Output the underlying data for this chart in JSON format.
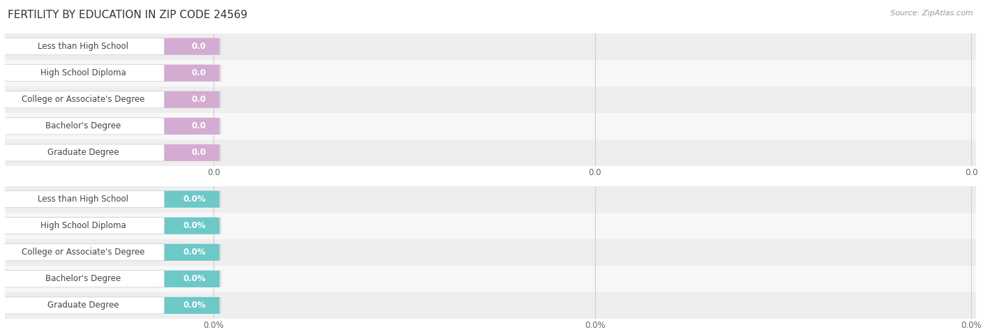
{
  "title": "FERTILITY BY EDUCATION IN ZIP CODE 24569",
  "source": "Source: ZipAtlas.com",
  "categories": [
    "Less than High School",
    "High School Diploma",
    "College or Associate's Degree",
    "Bachelor's Degree",
    "Graduate Degree"
  ],
  "values_top": [
    0.0,
    0.0,
    0.0,
    0.0,
    0.0
  ],
  "values_bottom": [
    0.0,
    0.0,
    0.0,
    0.0,
    0.0
  ],
  "labels_top": [
    "0.0",
    "0.0",
    "0.0",
    "0.0",
    "0.0"
  ],
  "labels_bottom": [
    "0.0%",
    "0.0%",
    "0.0%",
    "0.0%",
    "0.0%"
  ],
  "bar_color_top": "#d4acd1",
  "bar_color_bottom": "#6dc8c8",
  "bar_bg_color": "#e0e0e0",
  "row_bg_even": "#eeeeee",
  "row_bg_odd": "#f7f7f7",
  "xtick_labels_top": [
    "0.0",
    "0.0",
    "0.0"
  ],
  "xtick_labels_bottom": [
    "0.0%",
    "0.0%",
    "0.0%"
  ],
  "title_fontsize": 11,
  "source_fontsize": 8,
  "bar_label_fontsize": 8.5,
  "tick_fontsize": 8.5,
  "cat_fontsize": 8.5,
  "bar_height": 0.62,
  "background_color": "#ffffff",
  "grid_color": "#cccccc",
  "text_color": "#444444",
  "value_color": "#ffffff",
  "pill_edge_color": "#d0d0d0",
  "source_color": "#999999"
}
